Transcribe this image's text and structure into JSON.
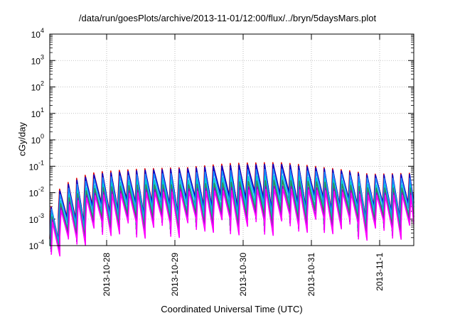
{
  "chart_data": {
    "type": "line",
    "title": "/data/run/goesPlots/archive/2013-11-01/12:00/flux/../bryn/5daysMars.plot",
    "xlabel": "Coordinated Universal Time (UTC)",
    "ylabel": "cGy/day",
    "yscale": "log",
    "ylim": [
      0.0001,
      10000
    ],
    "xlim": [
      "2013-10-27 04:00",
      "2013-11-01 12:00"
    ],
    "ytick_exponents": [
      -4,
      -3,
      -2,
      -1,
      0,
      1,
      2,
      3,
      4
    ],
    "xticks": [
      "2013-10-28",
      "2013-10-29",
      "2013-10-30",
      "2013-10-31",
      "2013-11-1"
    ],
    "grid": true,
    "legend": "none",
    "period_hours": 3,
    "series": [
      {
        "color": "#e01010",
        "values": [
          0.003,
          0.06,
          0.08,
          0.09,
          0.13,
          0.14,
          0.09,
          0.05,
          0.055
        ]
      },
      {
        "color": "#0000cc",
        "values": [
          0.0025,
          0.05,
          0.07,
          0.08,
          0.11,
          0.12,
          0.08,
          0.045,
          0.05
        ]
      },
      {
        "color": "#1e90ff",
        "values": [
          0.002,
          0.035,
          0.05,
          0.055,
          0.07,
          0.08,
          0.06,
          0.035,
          0.035
        ]
      },
      {
        "color": "#00cccc",
        "values": [
          0.0012,
          0.02,
          0.03,
          0.03,
          0.04,
          0.045,
          0.035,
          0.02,
          0.02
        ]
      },
      {
        "color": "#2e8b57",
        "values": [
          0.0009,
          0.015,
          0.02,
          0.02,
          0.025,
          0.03,
          0.025,
          0.015,
          0.015
        ]
      },
      {
        "color": "#9400d3",
        "values": [
          0.0007,
          0.01,
          0.013,
          0.014,
          0.016,
          0.018,
          0.015,
          0.01,
          0.01
        ]
      },
      {
        "color": "#ff00ff",
        "values": [
          0.0005,
          0.008,
          0.01,
          0.011,
          0.012,
          0.014,
          0.012,
          0.008,
          0.008
        ]
      }
    ]
  }
}
